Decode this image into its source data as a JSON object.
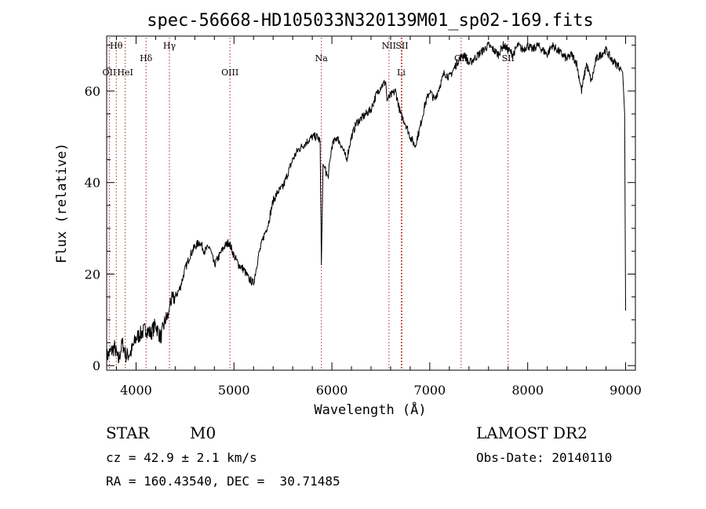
{
  "chart_data": {
    "type": "line",
    "title": "spec-56668-HD105033N320139M01_sp02-169.fits",
    "xlabel": "Wavelength (Å)",
    "ylabel": "Flux (relative)",
    "xlim": [
      3700,
      9100
    ],
    "ylim": [
      -1,
      72
    ],
    "x_ticks": [
      4000,
      5000,
      6000,
      7000,
      8000,
      9000
    ],
    "y_ticks": [
      0,
      20,
      40,
      60
    ],
    "x_tick_labels": [
      "4000",
      "5000",
      "6000",
      "7000",
      "8000",
      "9000"
    ],
    "y_tick_labels": [
      "0",
      "20",
      "40",
      "60"
    ],
    "grid": false,
    "line_color": "#000000",
    "marker_color": "#b22222",
    "series": [
      {
        "x": [
          3700,
          3740,
          3780,
          3820,
          3860,
          3900,
          3950,
          4000,
          4050,
          4100,
          4150,
          4200,
          4250,
          4300,
          4330,
          4350,
          4400,
          4450,
          4500,
          4550,
          4600,
          4650,
          4700,
          4750,
          4800,
          4850,
          4900,
          4950,
          5000,
          5050,
          5100,
          5150,
          5200,
          5250,
          5300,
          5350,
          5400,
          5450,
          5500,
          5550,
          5600,
          5650,
          5700,
          5750,
          5800,
          5850,
          5880,
          5893,
          5910,
          5930,
          5960,
          6000,
          6050,
          6100,
          6150,
          6200,
          6250,
          6300,
          6350,
          6400,
          6450,
          6500,
          6550,
          6563,
          6600,
          6650,
          6700,
          6750,
          6800,
          6850,
          6900,
          6950,
          7000,
          7050,
          7100,
          7150,
          7200,
          7250,
          7300,
          7350,
          7400,
          7450,
          7500,
          7550,
          7600,
          7650,
          7700,
          7750,
          7800,
          7850,
          7900,
          7950,
          8000,
          8050,
          8100,
          8150,
          8200,
          8250,
          8300,
          8350,
          8400,
          8450,
          8500,
          8550,
          8600,
          8650,
          8700,
          8750,
          8800,
          8850,
          8900,
          8950,
          8970,
          8990,
          9000
        ],
        "y": [
          2,
          3,
          4,
          1,
          5,
          2,
          3,
          6,
          7,
          8,
          7,
          9,
          6,
          10,
          11,
          14,
          15,
          17,
          21,
          24,
          26,
          27,
          25,
          26,
          22,
          24,
          26,
          27,
          24,
          22,
          21,
          19,
          18,
          24,
          28,
          31,
          36,
          38,
          39,
          42,
          45,
          47,
          48,
          49,
          50,
          50,
          49,
          22,
          44,
          43,
          41,
          48,
          50,
          48,
          45,
          50,
          53,
          54,
          55,
          56,
          59,
          61,
          62,
          58,
          59,
          60,
          55,
          53,
          50,
          48,
          52,
          57,
          60,
          58,
          61,
          64,
          63,
          65,
          67,
          68,
          66,
          67,
          68,
          69,
          70,
          69,
          68,
          70,
          69,
          68,
          70,
          69,
          70,
          69,
          70,
          69,
          68,
          70,
          69,
          68,
          67,
          68,
          66,
          60,
          66,
          62,
          67,
          68,
          69,
          67,
          66,
          65,
          64,
          55,
          12
        ]
      }
    ],
    "lines": [
      {
        "name": "Hθ",
        "x": 3798,
        "row": 1
      },
      {
        "name": "OII",
        "x": 3727,
        "row": 2
      },
      {
        "name": "HeI",
        "x": 3889,
        "row": 2
      },
      {
        "name": "Hδ",
        "x": 4102,
        "row": 1.5
      },
      {
        "name": "Hγ",
        "x": 4341,
        "row": 1
      },
      {
        "name": "OIII",
        "x": 4959,
        "row": 2
      },
      {
        "name": "Na",
        "x": 5893,
        "row": 1.5
      },
      {
        "name": "NII",
        "x": 6583,
        "row": 1
      },
      {
        "name": "SII",
        "x": 6716,
        "row": 1
      },
      {
        "name": "Li",
        "x": 6708,
        "row": 2
      },
      {
        "name": "OII",
        "x": 7320,
        "row": 1.5
      },
      {
        "name": "SII",
        "x": 7800,
        "row": 1.5
      }
    ]
  },
  "info": {
    "object_type": "STAR",
    "subclass": "M0",
    "survey": "LAMOST DR2",
    "cz": "cz = 42.9 ± 2.1 km/s",
    "obs_date": "Obs-Date: 20140110",
    "coords": "RA = 160.43540, DEC =  30.71485"
  }
}
